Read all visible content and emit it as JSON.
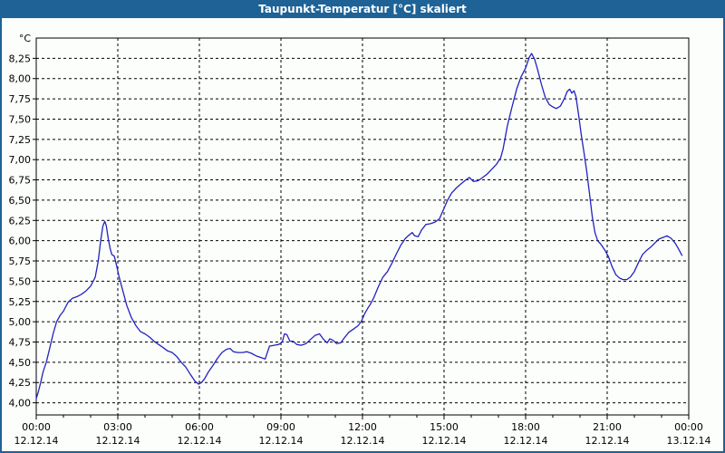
{
  "window": {
    "title": "Taupunkt-Temperatur [°C] skaliert"
  },
  "colors": {
    "frame": "#1E6296",
    "titlebar_bg": "#1E6296",
    "titlebar_text": "#FFFFFF",
    "background": "#FCFEFB",
    "plot_border": "#000000",
    "grid": "#000000",
    "line": "#2222C2",
    "label_text": "#000000"
  },
  "chart_data": {
    "type": "line",
    "title": "Taupunkt-Temperatur [°C] skaliert",
    "y_unit_label": "°C",
    "xlabel": "",
    "ylabel": "Taupunkt-Temperatur [°C]",
    "grid": "dashed",
    "legend_position": "none",
    "y_plot_range": [
      3.85,
      8.5
    ],
    "y_tick_values": [
      4.0,
      4.25,
      4.5,
      4.75,
      5.0,
      5.25,
      5.5,
      5.75,
      6.0,
      6.25,
      6.5,
      6.75,
      7.0,
      7.25,
      7.5,
      7.75,
      8.0,
      8.25
    ],
    "y_tick_labels": [
      "4,00",
      "4,25",
      "4,50",
      "4,75",
      "5,00",
      "5,25",
      "5,50",
      "5,75",
      "6,00",
      "6,25",
      "6,50",
      "6,75",
      "7,00",
      "7,25",
      "7,50",
      "7,75",
      "8,00",
      "8,25"
    ],
    "x_plot_range_hours": [
      0,
      24
    ],
    "x_major_ticks_hours": [
      0,
      3,
      6,
      9,
      12,
      15,
      18,
      21,
      24
    ],
    "x_minor_tick_every_hours": 1,
    "x_tick_time_labels": [
      "00:00",
      "03:00",
      "06:00",
      "09:00",
      "12:00",
      "15:00",
      "18:00",
      "21:00",
      "00:00"
    ],
    "x_tick_date_labels": [
      "12.12.14",
      "12.12.14",
      "12.12.14",
      "12.12.14",
      "12.12.14",
      "12.12.14",
      "12.12.14",
      "12.12.14",
      "13.12.14"
    ],
    "series": [
      {
        "name": "Taupunkt-Temperatur",
        "color": "#2222C2",
        "points": [
          [
            0.0,
            4.05
          ],
          [
            0.08,
            4.14
          ],
          [
            0.17,
            4.26
          ],
          [
            0.25,
            4.38
          ],
          [
            0.37,
            4.5
          ],
          [
            0.5,
            4.68
          ],
          [
            0.62,
            4.85
          ],
          [
            0.75,
            5.0
          ],
          [
            0.88,
            5.08
          ],
          [
            1.0,
            5.13
          ],
          [
            1.17,
            5.24
          ],
          [
            1.33,
            5.29
          ],
          [
            1.5,
            5.31
          ],
          [
            1.67,
            5.34
          ],
          [
            1.83,
            5.38
          ],
          [
            2.0,
            5.44
          ],
          [
            2.17,
            5.55
          ],
          [
            2.28,
            5.75
          ],
          [
            2.37,
            6.0
          ],
          [
            2.45,
            6.18
          ],
          [
            2.52,
            6.24
          ],
          [
            2.58,
            6.18
          ],
          [
            2.65,
            6.02
          ],
          [
            2.72,
            5.9
          ],
          [
            2.78,
            5.83
          ],
          [
            2.87,
            5.81
          ],
          [
            2.95,
            5.7
          ],
          [
            3.05,
            5.55
          ],
          [
            3.17,
            5.4
          ],
          [
            3.33,
            5.2
          ],
          [
            3.5,
            5.05
          ],
          [
            3.67,
            4.95
          ],
          [
            3.83,
            4.88
          ],
          [
            4.0,
            4.85
          ],
          [
            4.17,
            4.81
          ],
          [
            4.33,
            4.76
          ],
          [
            4.5,
            4.72
          ],
          [
            4.67,
            4.68
          ],
          [
            4.83,
            4.64
          ],
          [
            5.0,
            4.62
          ],
          [
            5.17,
            4.57
          ],
          [
            5.33,
            4.5
          ],
          [
            5.5,
            4.44
          ],
          [
            5.67,
            4.35
          ],
          [
            5.83,
            4.27
          ],
          [
            5.97,
            4.23
          ],
          [
            6.08,
            4.25
          ],
          [
            6.2,
            4.3
          ],
          [
            6.33,
            4.38
          ],
          [
            6.5,
            4.46
          ],
          [
            6.67,
            4.55
          ],
          [
            6.83,
            4.62
          ],
          [
            7.0,
            4.66
          ],
          [
            7.13,
            4.67
          ],
          [
            7.25,
            4.63
          ],
          [
            7.42,
            4.62
          ],
          [
            7.58,
            4.62
          ],
          [
            7.75,
            4.63
          ],
          [
            7.92,
            4.61
          ],
          [
            8.08,
            4.58
          ],
          [
            8.25,
            4.56
          ],
          [
            8.42,
            4.54
          ],
          [
            8.5,
            4.62
          ],
          [
            8.58,
            4.7
          ],
          [
            8.75,
            4.71
          ],
          [
            8.92,
            4.72
          ],
          [
            9.05,
            4.75
          ],
          [
            9.13,
            4.85
          ],
          [
            9.22,
            4.84
          ],
          [
            9.33,
            4.76
          ],
          [
            9.45,
            4.76
          ],
          [
            9.58,
            4.72
          ],
          [
            9.75,
            4.71
          ],
          [
            9.92,
            4.73
          ],
          [
            10.08,
            4.78
          ],
          [
            10.25,
            4.83
          ],
          [
            10.42,
            4.85
          ],
          [
            10.55,
            4.79
          ],
          [
            10.7,
            4.74
          ],
          [
            10.8,
            4.79
          ],
          [
            10.92,
            4.77
          ],
          [
            11.05,
            4.73
          ],
          [
            11.2,
            4.74
          ],
          [
            11.33,
            4.8
          ],
          [
            11.5,
            4.87
          ],
          [
            11.67,
            4.91
          ],
          [
            11.83,
            4.95
          ],
          [
            11.95,
            5.0
          ],
          [
            12.08,
            5.1
          ],
          [
            12.2,
            5.17
          ],
          [
            12.28,
            5.21
          ],
          [
            12.42,
            5.3
          ],
          [
            12.58,
            5.43
          ],
          [
            12.75,
            5.55
          ],
          [
            12.92,
            5.62
          ],
          [
            13.08,
            5.72
          ],
          [
            13.25,
            5.84
          ],
          [
            13.42,
            5.95
          ],
          [
            13.58,
            6.03
          ],
          [
            13.75,
            6.08
          ],
          [
            13.83,
            6.1
          ],
          [
            13.92,
            6.06
          ],
          [
            14.05,
            6.05
          ],
          [
            14.17,
            6.13
          ],
          [
            14.33,
            6.2
          ],
          [
            14.5,
            6.21
          ],
          [
            14.67,
            6.23
          ],
          [
            14.83,
            6.27
          ],
          [
            15.0,
            6.4
          ],
          [
            15.13,
            6.5
          ],
          [
            15.28,
            6.59
          ],
          [
            15.45,
            6.65
          ],
          [
            15.62,
            6.7
          ],
          [
            15.8,
            6.75
          ],
          [
            15.93,
            6.78
          ],
          [
            16.08,
            6.73
          ],
          [
            16.25,
            6.74
          ],
          [
            16.42,
            6.78
          ],
          [
            16.58,
            6.82
          ],
          [
            16.75,
            6.88
          ],
          [
            16.92,
            6.94
          ],
          [
            17.08,
            7.02
          ],
          [
            17.17,
            7.13
          ],
          [
            17.33,
            7.42
          ],
          [
            17.5,
            7.65
          ],
          [
            17.67,
            7.87
          ],
          [
            17.83,
            8.02
          ],
          [
            18.0,
            8.13
          ],
          [
            18.13,
            8.26
          ],
          [
            18.22,
            8.31
          ],
          [
            18.33,
            8.24
          ],
          [
            18.45,
            8.1
          ],
          [
            18.58,
            7.93
          ],
          [
            18.72,
            7.77
          ],
          [
            18.87,
            7.68
          ],
          [
            19.0,
            7.65
          ],
          [
            19.13,
            7.63
          ],
          [
            19.28,
            7.66
          ],
          [
            19.42,
            7.75
          ],
          [
            19.53,
            7.84
          ],
          [
            19.62,
            7.87
          ],
          [
            19.7,
            7.82
          ],
          [
            19.78,
            7.85
          ],
          [
            19.85,
            7.78
          ],
          [
            19.95,
            7.55
          ],
          [
            20.05,
            7.3
          ],
          [
            20.15,
            7.08
          ],
          [
            20.25,
            6.85
          ],
          [
            20.35,
            6.58
          ],
          [
            20.45,
            6.3
          ],
          [
            20.55,
            6.1
          ],
          [
            20.65,
            6.0
          ],
          [
            20.78,
            5.95
          ],
          [
            20.92,
            5.88
          ],
          [
            21.05,
            5.8
          ],
          [
            21.18,
            5.68
          ],
          [
            21.32,
            5.58
          ],
          [
            21.45,
            5.54
          ],
          [
            21.58,
            5.52
          ],
          [
            21.72,
            5.52
          ],
          [
            21.85,
            5.55
          ],
          [
            22.0,
            5.62
          ],
          [
            22.15,
            5.73
          ],
          [
            22.3,
            5.83
          ],
          [
            22.45,
            5.88
          ],
          [
            22.6,
            5.92
          ],
          [
            22.75,
            5.97
          ],
          [
            22.9,
            6.02
          ],
          [
            23.05,
            6.04
          ],
          [
            23.2,
            6.06
          ],
          [
            23.35,
            6.03
          ],
          [
            23.5,
            5.97
          ],
          [
            23.62,
            5.9
          ],
          [
            23.75,
            5.82
          ]
        ]
      }
    ]
  }
}
